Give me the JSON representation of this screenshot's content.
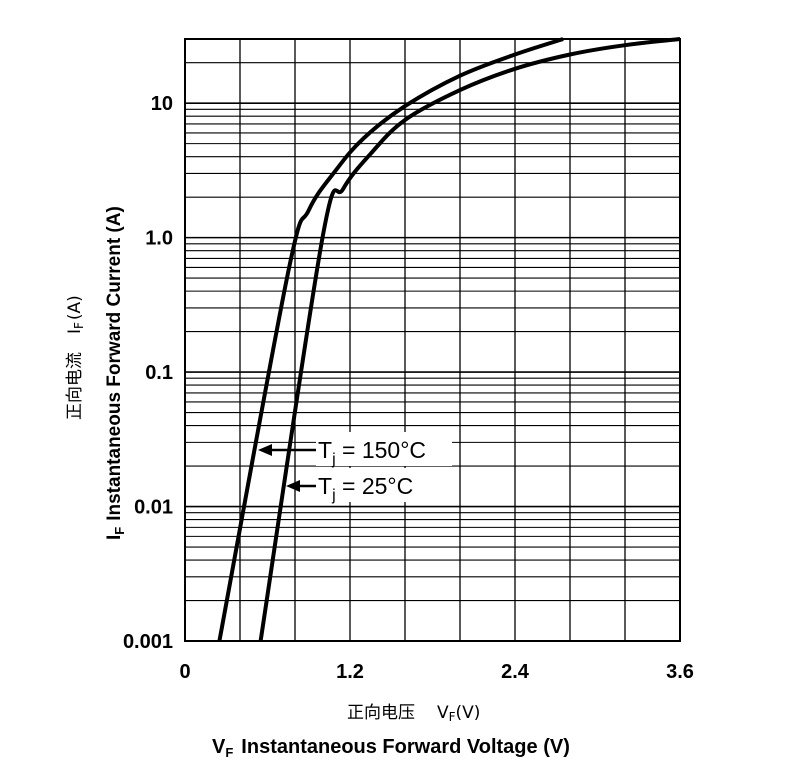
{
  "chart_data": {
    "type": "line",
    "xlim": [
      0,
      3.6
    ],
    "ylim": [
      0.001,
      30
    ],
    "yscale": "log",
    "grid": true,
    "x_ticks": [
      "0",
      "1.2",
      "2.4",
      "3.6"
    ],
    "y_ticks": [
      "0.001",
      "0.01",
      "0.1",
      "1.0",
      "10"
    ],
    "xlabel_cn": "正向电压",
    "xlabel_symbol": "V",
    "xlabel_symbol_sub": "F",
    "xlabel_unit": "(V)",
    "xlabel": "Instantaneous Forward Voltage (V)",
    "ylabel_cn": "正向电流",
    "ylabel_symbol": "I",
    "ylabel_symbol_sub": "F",
    "ylabel_unit": "(A)",
    "ylabel": "Instantaneous Forward Current (A)",
    "series": [
      {
        "name": "Tj = 150°C",
        "label_main": "T",
        "label_sub": "j",
        "label_rest": " = 150°C",
        "x": [
          0.25,
          0.75,
          0.9,
          1.1,
          1.3,
          1.6,
          2.0,
          2.4,
          2.75
        ],
        "y": [
          0.001,
          0.55,
          1.6,
          3.2,
          5.5,
          9.5,
          16,
          23,
          30
        ]
      },
      {
        "name": "Tj = 25°C",
        "label_main": "T",
        "label_sub": "j",
        "label_rest": " = 25°C",
        "x": [
          0.55,
          1.0,
          1.15,
          1.35,
          1.6,
          2.0,
          2.4,
          2.8,
          3.2,
          3.6
        ],
        "y": [
          0.001,
          1.0,
          2.3,
          4.2,
          7.5,
          12.5,
          18,
          23,
          27,
          30
        ]
      }
    ]
  }
}
